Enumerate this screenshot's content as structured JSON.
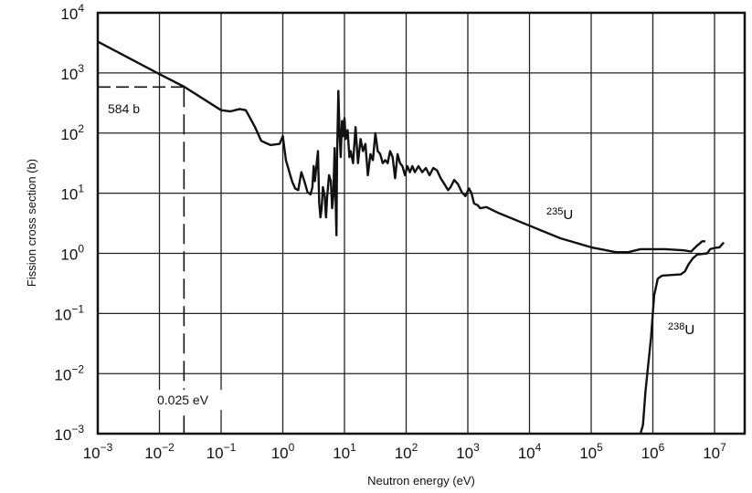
{
  "chart_data": {
    "type": "line",
    "title": "",
    "xlabel": "Neutron energy (eV)",
    "ylabel": "Fission cross section (b)",
    "xscale": "log",
    "yscale": "log",
    "xlim": [
      0.001,
      20000000
    ],
    "ylim": [
      0.001,
      10000
    ],
    "grid": true,
    "legend": "none (curves labeled inline)",
    "x_ticks": [
      {
        "exp": "-3",
        "value": 0.001
      },
      {
        "exp": "-2",
        "value": 0.01
      },
      {
        "exp": "-1",
        "value": 0.1
      },
      {
        "exp": "0",
        "value": 1
      },
      {
        "exp": "1",
        "value": 10
      },
      {
        "exp": "2",
        "value": 100
      },
      {
        "exp": "3",
        "value": 1000
      },
      {
        "exp": "4",
        "value": 10000
      },
      {
        "exp": "5",
        "value": 100000
      },
      {
        "exp": "6",
        "value": 1000000
      },
      {
        "exp": "7",
        "value": 10000000
      }
    ],
    "y_ticks": [
      {
        "exp": "4",
        "value": 10000
      },
      {
        "exp": "3",
        "value": 1000
      },
      {
        "exp": "2",
        "value": 100
      },
      {
        "exp": "1",
        "value": 10
      },
      {
        "exp": "0",
        "value": 1
      },
      {
        "exp": "-1",
        "value": 0.1
      },
      {
        "exp": "-2",
        "value": 0.01
      },
      {
        "exp": "-3",
        "value": 0.001
      }
    ],
    "tick_base": "10",
    "series": [
      {
        "name": "235U",
        "label_mass": "235",
        "label_elem": "U",
        "label_pos_log": [
          3.85,
          0.72
        ],
        "points_log": [
          [
            -3.0,
            3.52
          ],
          [
            -2.0,
            2.98
          ],
          [
            -1.6,
            2.77
          ],
          [
            -1.0,
            2.38
          ],
          [
            -0.85,
            2.36
          ],
          [
            -0.7,
            2.4
          ],
          [
            -0.6,
            2.38
          ],
          [
            -0.45,
            2.1
          ],
          [
            -0.35,
            1.87
          ],
          [
            -0.2,
            1.8
          ],
          [
            -0.05,
            1.82
          ],
          [
            0.0,
            1.95
          ],
          [
            0.05,
            1.55
          ],
          [
            0.15,
            1.2
          ],
          [
            0.2,
            1.08
          ],
          [
            0.25,
            1.05
          ],
          [
            0.3,
            1.35
          ],
          [
            0.35,
            1.2
          ],
          [
            0.4,
            1.02
          ],
          [
            0.45,
            0.98
          ],
          [
            0.48,
            1.1
          ],
          [
            0.5,
            1.45
          ],
          [
            0.52,
            1.2
          ],
          [
            0.55,
            1.5
          ],
          [
            0.57,
            1.7
          ],
          [
            0.59,
            0.85
          ],
          [
            0.61,
            0.6
          ],
          [
            0.63,
            0.75
          ],
          [
            0.65,
            1.1
          ],
          [
            0.68,
            0.95
          ],
          [
            0.7,
            0.6
          ],
          [
            0.72,
            0.95
          ],
          [
            0.75,
            1.3
          ],
          [
            0.78,
            1.2
          ],
          [
            0.8,
            0.75
          ],
          [
            0.82,
            0.95
          ],
          [
            0.84,
            1.75
          ],
          [
            0.86,
            0.7
          ],
          [
            0.87,
            0.3
          ],
          [
            0.88,
            1.6
          ],
          [
            0.9,
            2.7
          ],
          [
            0.92,
            2.0
          ],
          [
            0.94,
            1.6
          ],
          [
            0.96,
            2.2
          ],
          [
            0.98,
            1.95
          ],
          [
            1.0,
            2.25
          ],
          [
            1.02,
            1.9
          ],
          [
            1.05,
            2.05
          ],
          [
            1.08,
            1.6
          ],
          [
            1.1,
            1.7
          ],
          [
            1.14,
            1.5
          ],
          [
            1.18,
            2.1
          ],
          [
            1.22,
            1.5
          ],
          [
            1.26,
            1.9
          ],
          [
            1.3,
            1.7
          ],
          [
            1.34,
            1.82
          ],
          [
            1.38,
            1.3
          ],
          [
            1.42,
            1.65
          ],
          [
            1.46,
            1.55
          ],
          [
            1.5,
            2.0
          ],
          [
            1.54,
            1.7
          ],
          [
            1.58,
            1.65
          ],
          [
            1.62,
            1.5
          ],
          [
            1.66,
            1.55
          ],
          [
            1.7,
            1.5
          ],
          [
            1.74,
            1.7
          ],
          [
            1.78,
            1.6
          ],
          [
            1.82,
            1.25
          ],
          [
            1.86,
            1.65
          ],
          [
            1.9,
            1.5
          ],
          [
            1.94,
            1.45
          ],
          [
            1.98,
            1.3
          ],
          [
            2.02,
            1.45
          ],
          [
            2.06,
            1.35
          ],
          [
            2.1,
            1.45
          ],
          [
            2.14,
            1.35
          ],
          [
            2.2,
            1.45
          ],
          [
            2.26,
            1.35
          ],
          [
            2.32,
            1.42
          ],
          [
            2.38,
            1.3
          ],
          [
            2.44,
            1.42
          ],
          [
            2.5,
            1.38
          ],
          [
            2.56,
            1.25
          ],
          [
            2.62,
            1.15
          ],
          [
            2.68,
            1.05
          ],
          [
            2.72,
            1.1
          ],
          [
            2.78,
            1.22
          ],
          [
            2.84,
            1.15
          ],
          [
            2.9,
            1.02
          ],
          [
            2.96,
            0.95
          ],
          [
            3.02,
            1.08
          ],
          [
            3.06,
            1.0
          ],
          [
            3.1,
            0.83
          ],
          [
            3.16,
            0.8
          ],
          [
            3.2,
            0.75
          ],
          [
            3.3,
            0.77
          ],
          [
            3.5,
            0.67
          ],
          [
            4.0,
            0.46
          ],
          [
            4.5,
            0.25
          ],
          [
            5.0,
            0.1
          ],
          [
            5.4,
            0.02
          ],
          [
            5.6,
            0.02
          ],
          [
            5.8,
            0.07
          ],
          [
            6.2,
            0.07
          ],
          [
            6.5,
            0.05
          ],
          [
            6.62,
            0.03
          ],
          [
            6.72,
            0.13
          ],
          [
            6.8,
            0.2
          ],
          [
            6.85,
            0.2
          ]
        ]
      },
      {
        "name": "238U",
        "label_mass": "238",
        "label_elem": "U",
        "label_pos_log": [
          6.05,
          -1.5
        ],
        "points_log": [
          [
            5.8,
            -3.0
          ],
          [
            5.84,
            -2.85
          ],
          [
            5.88,
            -2.3
          ],
          [
            5.92,
            -1.9
          ],
          [
            5.97,
            -1.4
          ],
          [
            6.02,
            -0.7
          ],
          [
            6.08,
            -0.42
          ],
          [
            6.15,
            -0.37
          ],
          [
            6.3,
            -0.36
          ],
          [
            6.45,
            -0.35
          ],
          [
            6.52,
            -0.3
          ],
          [
            6.58,
            -0.18
          ],
          [
            6.65,
            -0.08
          ],
          [
            6.72,
            -0.02
          ],
          [
            6.8,
            -0.01
          ],
          [
            6.88,
            0.0
          ],
          [
            6.93,
            0.07
          ],
          [
            7.0,
            0.09
          ],
          [
            7.08,
            0.1
          ],
          [
            7.15,
            0.18
          ]
        ]
      }
    ],
    "annotations": [
      {
        "text": "584 b",
        "type": "reference",
        "value": 584
      },
      {
        "text": "0.025 eV",
        "type": "reference",
        "value": 0.025
      }
    ],
    "reference_lines": {
      "thermal_energy_ev": 0.025,
      "thermal_cross_section_b": 584
    }
  },
  "labels": {
    "xlabel": "Neutron energy (eV)",
    "ylabel": "Fission cross section (b)",
    "annot_584": "584 b",
    "annot_thermal": "0.025 eV",
    "u235_mass": "235",
    "u235_elem": "U",
    "u238_mass": "238",
    "u238_elem": "U"
  }
}
